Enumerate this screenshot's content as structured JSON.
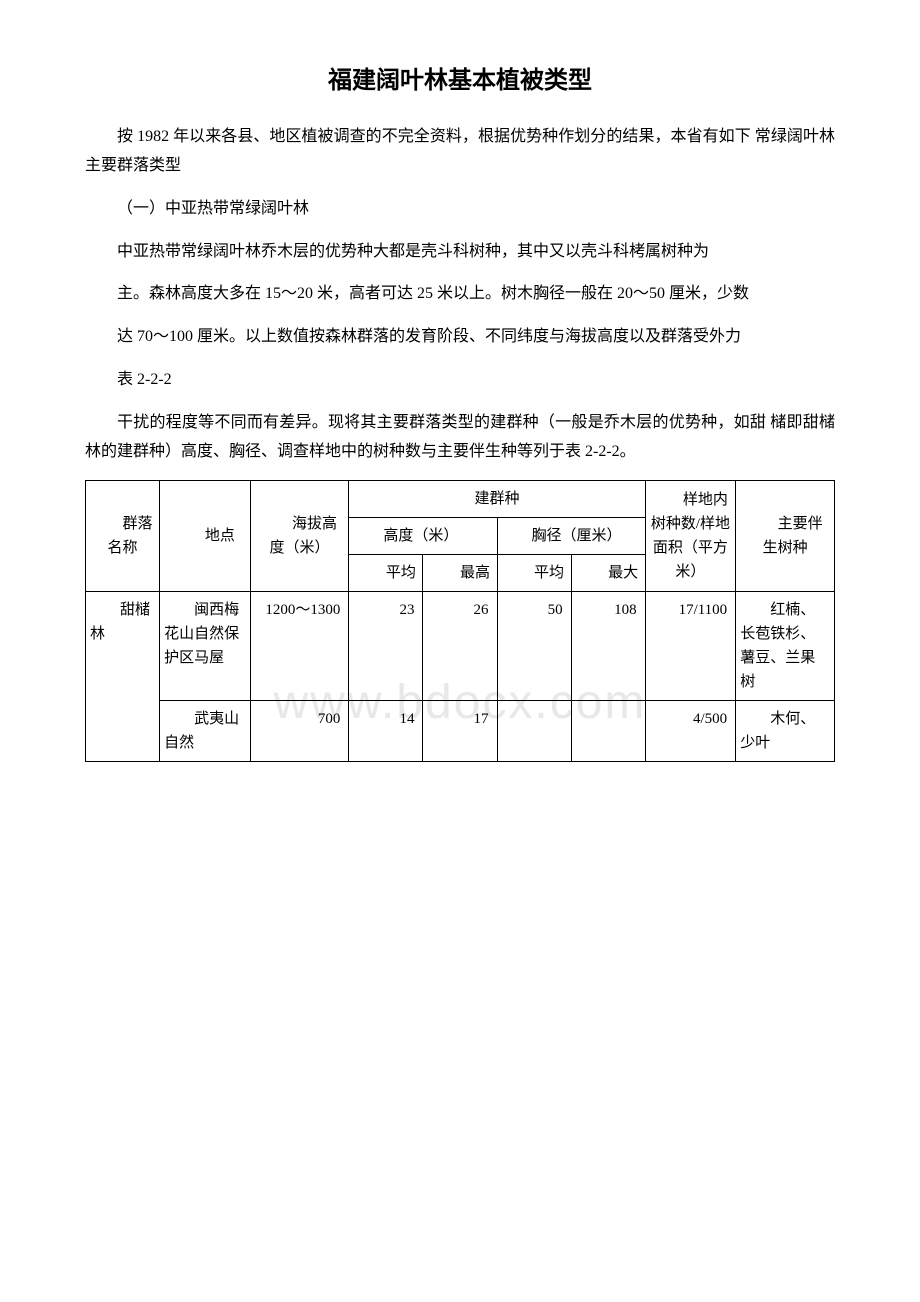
{
  "watermark": "www.bdocx.com",
  "title": "福建阔叶林基本植被类型",
  "paragraphs": {
    "p1": "按 1982 年以来各县、地区植被调查的不完全资料，根据优势种作划分的结果，本省有如下 常绿阔叶林主要群落类型",
    "p2": "（一）中亚热带常绿阔叶林",
    "p3": "中亚热带常绿阔叶林乔木层的优势种大都是壳斗科树种，其中又以壳斗科栲属树种为",
    "p4": "主。森林高度大多在 15～20 米，高者可达 25 米以上。树木胸径一般在 20～50 厘米，少数",
    "p5": "达 70～100 厘米。以上数值按森林群落的发育阶段、不同纬度与海拔高度以及群落受外力",
    "p6": "表 2-2-2",
    "p7": "干扰的程度等不同而有差异。现将其主要群落类型的建群种（一般是乔木层的优势种，如甜 槠即甜槠林的建群种）高度、胸径、调查样地中的树种数与主要伴生种等列于表 2-2-2。"
  },
  "table": {
    "headers": {
      "name": "群落名称",
      "location": "地点",
      "altitude": "海拔高度（米）",
      "species_group": "建群种",
      "height": "高度（米）",
      "diameter": "胸径（厘米）",
      "avg": "平均",
      "max_h": "最高",
      "max_d": "最大",
      "tree_count": "样地内树种数/样地面积（平方米）",
      "companion": "主要伴生树种"
    },
    "rows": [
      {
        "name": "甜槠林",
        "location": "闽西梅花山自然保护区马屋",
        "altitude": "1200～1300",
        "h_avg": "23",
        "h_max": "26",
        "d_avg": "50",
        "d_max": "108",
        "count": "17/1100",
        "companion": "红楠、长苞铁杉、薯豆、兰果树"
      },
      {
        "name": "",
        "location": "武夷山自然",
        "altitude": "700",
        "h_avg": "14",
        "h_max": "17",
        "d_avg": "",
        "d_max": "",
        "count": "4/500",
        "companion": "木何、少叶"
      }
    ]
  }
}
